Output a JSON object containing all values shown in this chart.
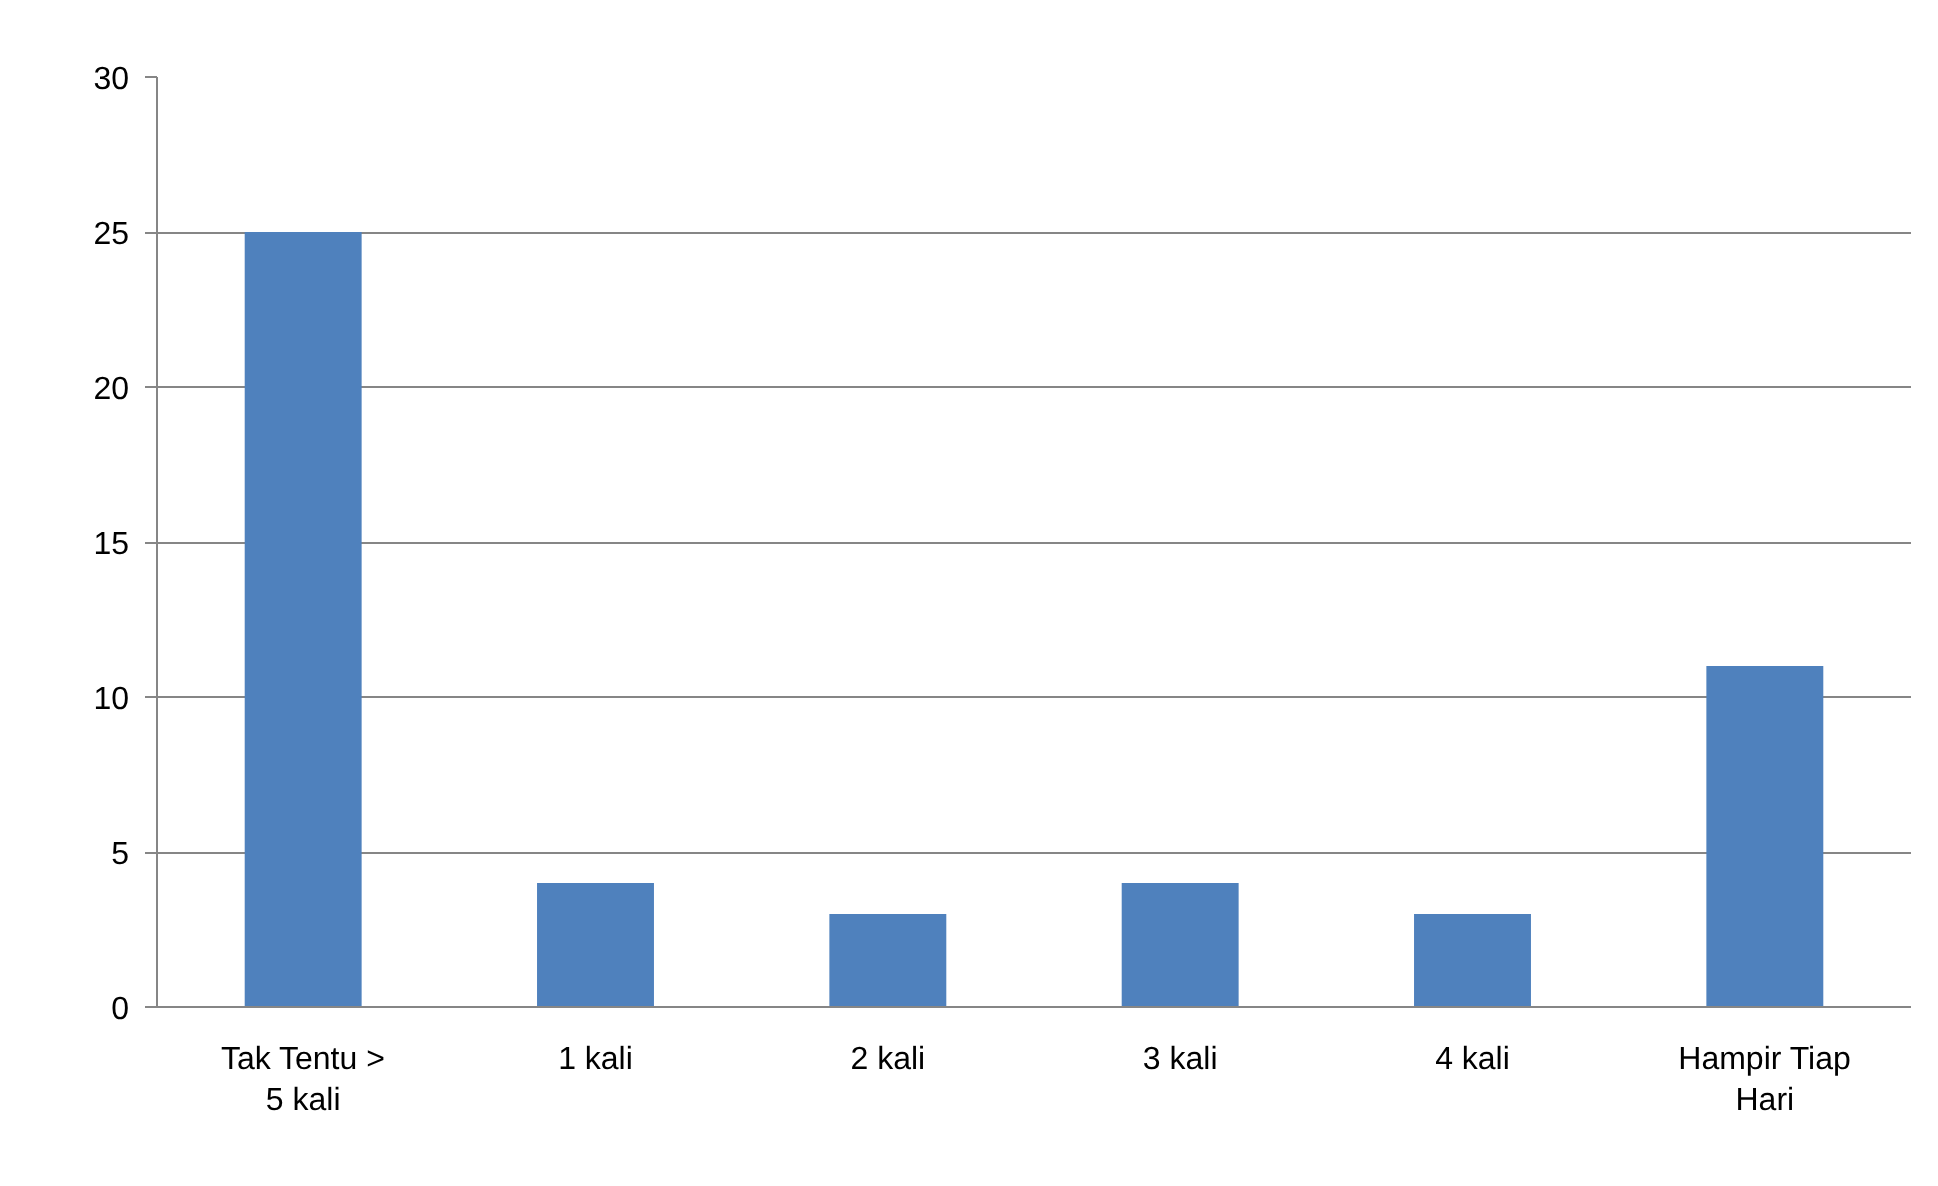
{
  "chart_data": {
    "type": "bar",
    "categories": [
      "Tak Tentu > 5 kali",
      "1 kali",
      "2 kali",
      "3 kali",
      "4 kali",
      "Hampir Tiap Hari"
    ],
    "values": [
      25,
      4,
      3,
      4,
      3,
      11
    ],
    "color": "#4f81bd",
    "ylim": [
      0,
      30
    ],
    "yticks": [
      0,
      5,
      10,
      15,
      20,
      25,
      30
    ],
    "grid": "y"
  }
}
